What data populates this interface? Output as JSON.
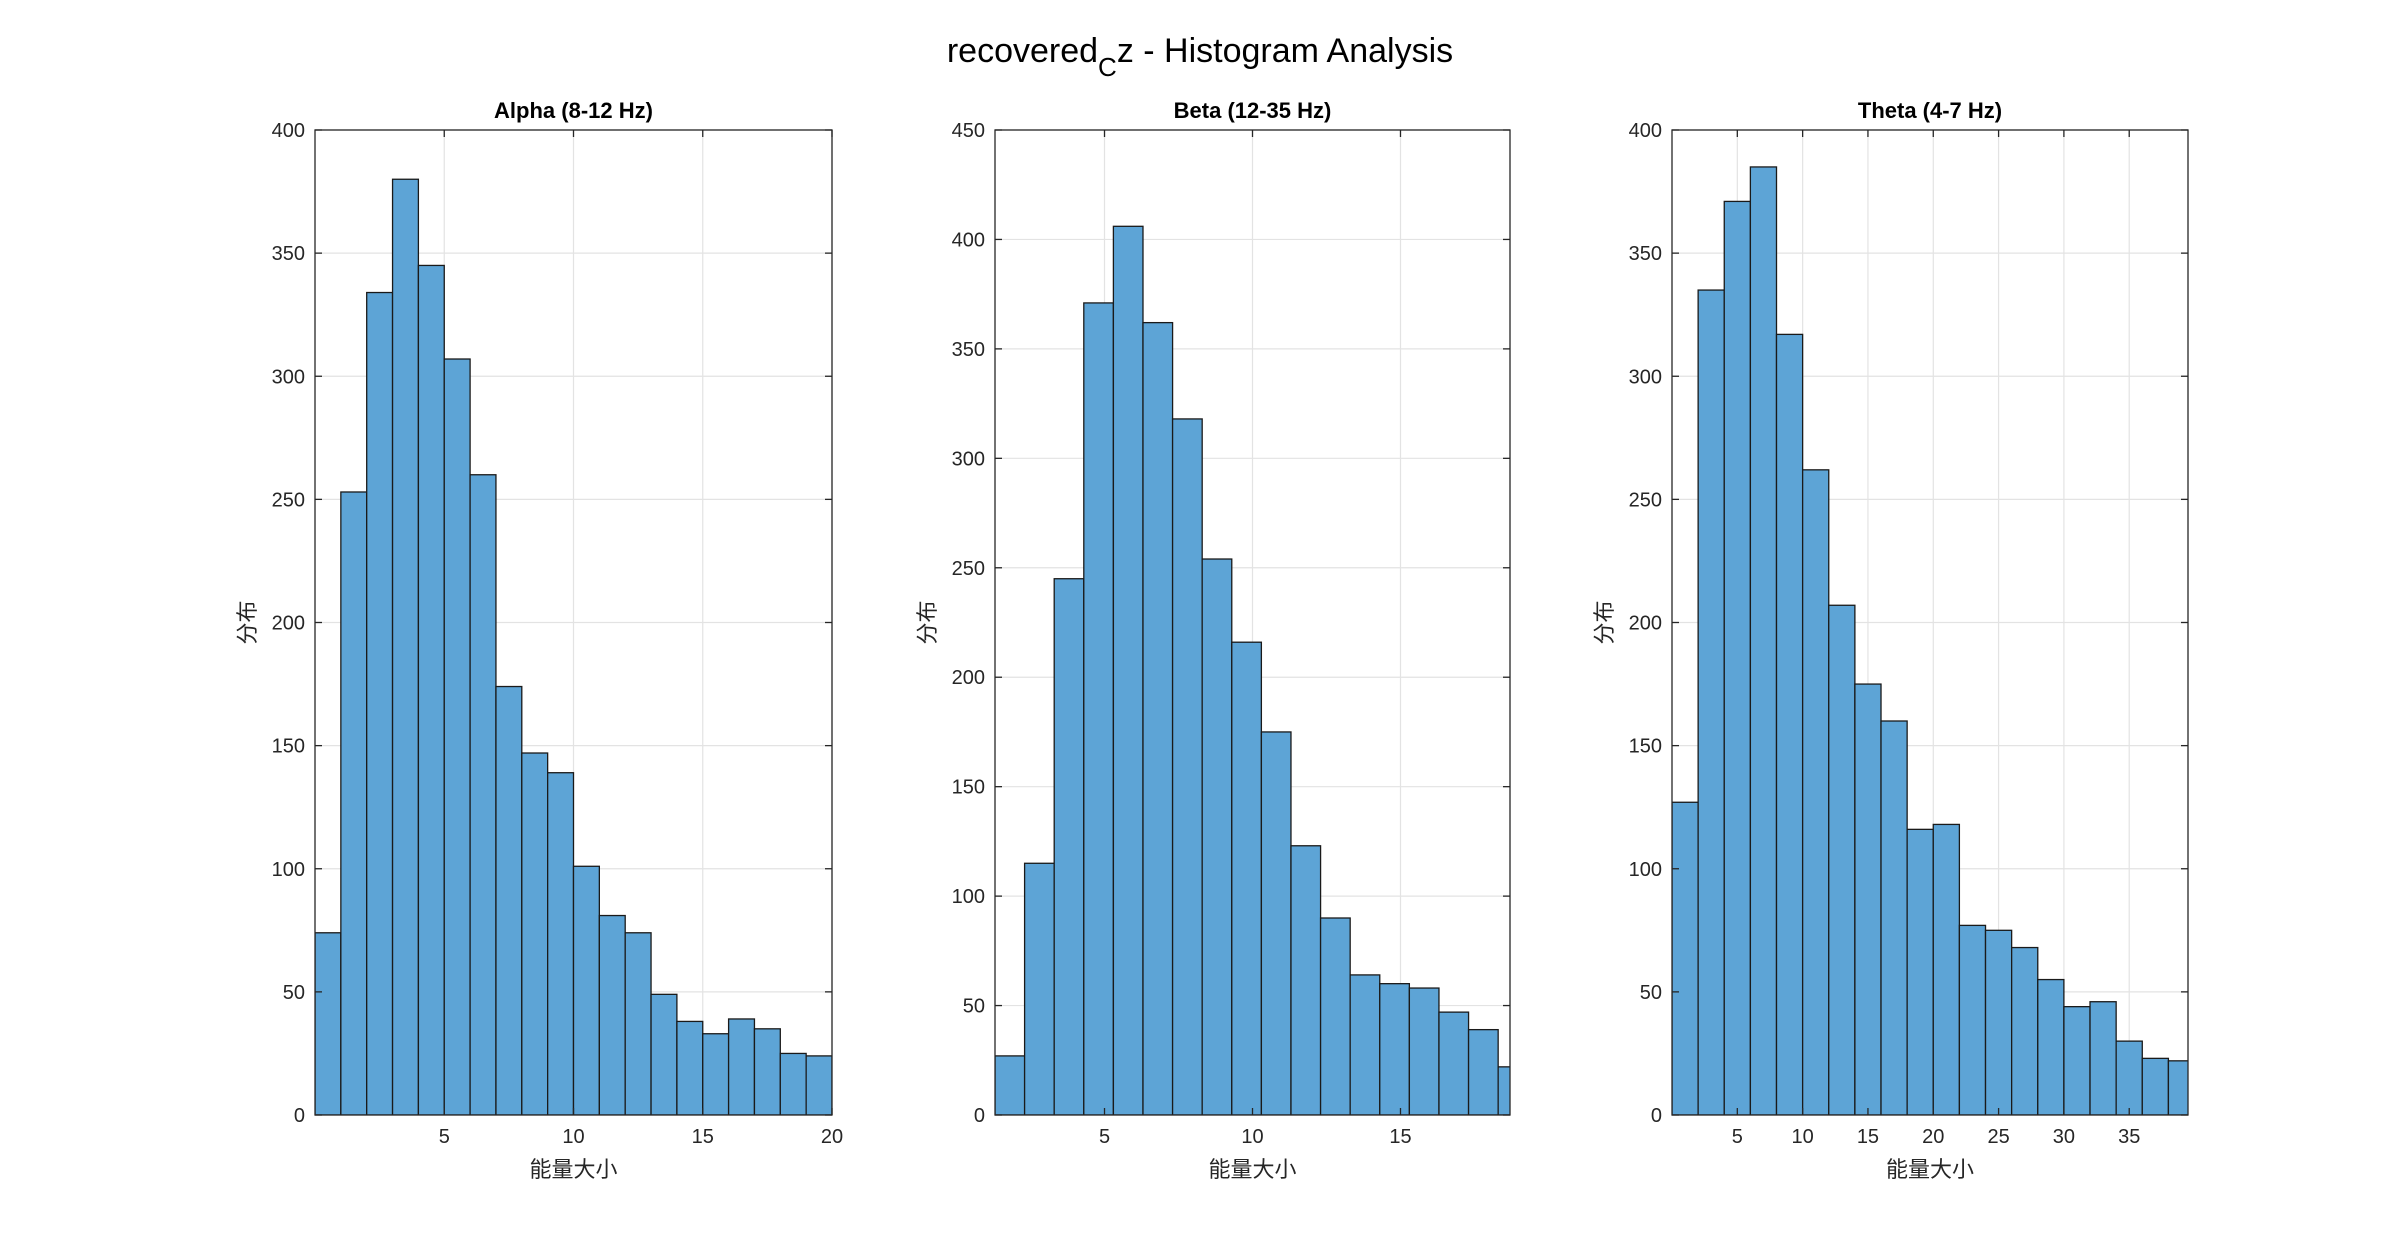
{
  "figure": {
    "title_main": "recovered",
    "title_sub": "C",
    "title_tail": "z - Histogram Analysis"
  },
  "colors": {
    "bar_fill": "#5DA4D6",
    "bar_edge": "#1a1a1a",
    "grid": "#e3e3e3",
    "axis": "#262626"
  },
  "chart_data": [
    {
      "type": "bar",
      "title": "Alpha (8-12 Hz)",
      "xlabel": "能量大小",
      "ylabel": "分布",
      "xlim": [
        0,
        20
      ],
      "ylim": [
        0,
        400
      ],
      "xticks": [
        5,
        10,
        15,
        20
      ],
      "yticks": [
        0,
        50,
        100,
        150,
        200,
        250,
        300,
        350,
        400
      ],
      "bin_edges": [
        0,
        1,
        2,
        3,
        4,
        5,
        6,
        7,
        8,
        9,
        10,
        11,
        12,
        13,
        14,
        15,
        16,
        17,
        18,
        19,
        20
      ],
      "values": [
        74,
        253,
        334,
        380,
        345,
        307,
        260,
        174,
        147,
        139,
        101,
        81,
        74,
        49,
        38,
        33,
        39,
        35,
        25,
        24
      ],
      "grid": true
    },
    {
      "type": "bar",
      "title": "Beta (12-35 Hz)",
      "xlabel": "能量大小",
      "ylabel": "分布",
      "xlim": [
        1.3,
        18.7
      ],
      "ylim": [
        0,
        450
      ],
      "xticks": [
        5,
        10,
        15
      ],
      "yticks": [
        0,
        50,
        100,
        150,
        200,
        250,
        300,
        350,
        400,
        450
      ],
      "bin_edges": [
        1.3,
        2.3,
        3.3,
        4.3,
        5.3,
        6.3,
        7.3,
        8.3,
        9.3,
        10.3,
        11.3,
        12.3,
        13.3,
        14.3,
        15.3,
        16.3,
        17.3,
        18.3,
        19.3
      ],
      "values": [
        27,
        115,
        245,
        371,
        406,
        362,
        318,
        254,
        216,
        175,
        123,
        90,
        64,
        60,
        58,
        47,
        39,
        22
      ],
      "grid": true
    },
    {
      "type": "bar",
      "title": "Theta (4-7 Hz)",
      "xlabel": "能量大小",
      "ylabel": "分布",
      "xlim": [
        0,
        39.5
      ],
      "ylim": [
        0,
        400
      ],
      "xticks": [
        5,
        10,
        15,
        20,
        25,
        30,
        35
      ],
      "yticks": [
        0,
        50,
        100,
        150,
        200,
        250,
        300,
        350,
        400
      ],
      "bin_edges": [
        0,
        2,
        4,
        6,
        8,
        10,
        12,
        14,
        16,
        18,
        20,
        22,
        24,
        26,
        28,
        30,
        32,
        34,
        36,
        38,
        40
      ],
      "values": [
        127,
        335,
        371,
        385,
        317,
        262,
        207,
        175,
        160,
        116,
        118,
        77,
        75,
        68,
        55,
        44,
        46,
        30,
        23,
        22
      ],
      "grid": true
    }
  ]
}
